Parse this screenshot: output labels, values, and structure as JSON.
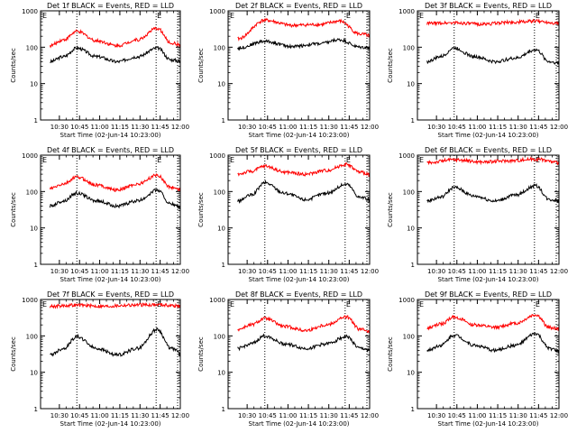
{
  "figure": {
    "x_tick_labels": [
      "10:30",
      "10:45",
      "11:00",
      "11:15",
      "11:30",
      "11:45",
      "12:00"
    ],
    "y_tick_labels": [
      "1",
      "10",
      "100",
      "1000"
    ],
    "ylabel": "Counts/sec",
    "xlabel": "Start Time (02-Jun-14 10:23:00)",
    "corner_marker_left": "E",
    "corner_marker_right": "E",
    "colors": {
      "events": "#000000",
      "lld": "#ff0000"
    }
  },
  "chart_data": [
    {
      "title": "Det 1f BLACK = Events, RED = LLD",
      "type": "line",
      "x_unit": "minutes since 10:23:00",
      "ylim": [
        1,
        1000
      ],
      "yscale": "log",
      "series": [
        {
          "name": "Events",
          "color": "#000000",
          "x": [
            0,
            10,
            20,
            35,
            50,
            65,
            80,
            90,
            100
          ],
          "values": [
            40,
            55,
            95,
            55,
            40,
            55,
            95,
            45,
            40
          ]
        },
        {
          "name": "LLD",
          "color": "#ff0000",
          "x": [
            0,
            10,
            20,
            35,
            50,
            65,
            80,
            90,
            100
          ],
          "values": [
            110,
            160,
            270,
            150,
            110,
            160,
            330,
            130,
            110
          ]
        }
      ]
    },
    {
      "title": "Det 2f BLACK = Events, RED = LLD",
      "type": "line",
      "x_unit": "minutes since 10:23:00",
      "ylim": [
        1,
        1000
      ],
      "yscale": "log",
      "series": [
        {
          "name": "Events",
          "color": "#000000",
          "x": [
            0,
            20,
            40,
            60,
            75,
            90,
            100
          ],
          "values": [
            95,
            145,
            105,
            125,
            160,
            100,
            95
          ]
        },
        {
          "name": "LLD",
          "color": "#ff0000",
          "x": [
            0,
            20,
            40,
            60,
            75,
            90,
            100
          ],
          "values": [
            170,
            550,
            400,
            420,
            520,
            230,
            200
          ]
        }
      ]
    },
    {
      "title": "Det 3f BLACK = Events, RED = LLD",
      "type": "line",
      "x_unit": "minutes since 10:23:00",
      "ylim": [
        1,
        1000
      ],
      "yscale": "log",
      "series": [
        {
          "name": "Events",
          "color": "#000000",
          "x": [
            0,
            10,
            20,
            35,
            50,
            65,
            80,
            90,
            100
          ],
          "values": [
            40,
            55,
            95,
            55,
            40,
            50,
            85,
            40,
            35
          ]
        },
        {
          "name": "LLD",
          "color": "#ff0000",
          "x": [
            0,
            20,
            40,
            60,
            80,
            100
          ],
          "values": [
            450,
            470,
            430,
            480,
            520,
            450
          ]
        }
      ]
    },
    {
      "title": "Det 4f BLACK = Events, RED = LLD",
      "type": "line",
      "x_unit": "minutes since 10:23:00",
      "ylim": [
        1,
        1000
      ],
      "yscale": "log",
      "series": [
        {
          "name": "Events",
          "color": "#000000",
          "x": [
            0,
            10,
            20,
            35,
            50,
            65,
            80,
            90,
            100
          ],
          "values": [
            40,
            55,
            90,
            55,
            40,
            55,
            110,
            45,
            35
          ]
        },
        {
          "name": "LLD",
          "color": "#ff0000",
          "x": [
            0,
            10,
            20,
            35,
            50,
            65,
            80,
            90,
            100
          ],
          "values": [
            120,
            160,
            250,
            150,
            110,
            160,
            280,
            130,
            110
          ]
        }
      ]
    },
    {
      "title": "Det 5f BLACK = Events, RED = LLD",
      "type": "line",
      "x_unit": "minutes since 10:23:00",
      "ylim": [
        1,
        1000
      ],
      "yscale": "log",
      "series": [
        {
          "name": "Events",
          "color": "#000000",
          "x": [
            0,
            10,
            20,
            35,
            50,
            65,
            80,
            90,
            100
          ],
          "values": [
            55,
            80,
            175,
            90,
            60,
            90,
            160,
            70,
            55
          ]
        },
        {
          "name": "LLD",
          "color": "#ff0000",
          "x": [
            0,
            10,
            20,
            35,
            50,
            65,
            80,
            90,
            100
          ],
          "values": [
            300,
            360,
            500,
            340,
            300,
            380,
            560,
            340,
            280
          ]
        }
      ]
    },
    {
      "title": "Det 6f BLACK = Events, RED = LLD",
      "type": "line",
      "x_unit": "minutes since 10:23:00",
      "ylim": [
        1,
        1000
      ],
      "yscale": "log",
      "series": [
        {
          "name": "Events",
          "color": "#000000",
          "x": [
            0,
            10,
            20,
            35,
            50,
            65,
            80,
            90,
            100
          ],
          "values": [
            55,
            70,
            130,
            75,
            55,
            80,
            145,
            60,
            55
          ]
        },
        {
          "name": "LLD",
          "color": "#ff0000",
          "x": [
            0,
            20,
            40,
            60,
            80,
            100
          ],
          "values": [
            620,
            750,
            650,
            700,
            780,
            600
          ]
        }
      ]
    },
    {
      "title": "Det 7f BLACK = Events, RED = LLD",
      "type": "line",
      "x_unit": "minutes since 10:23:00",
      "ylim": [
        1,
        1000
      ],
      "yscale": "log",
      "series": [
        {
          "name": "Events",
          "color": "#000000",
          "x": [
            0,
            10,
            20,
            35,
            50,
            65,
            80,
            90,
            100
          ],
          "values": [
            30,
            45,
            95,
            45,
            30,
            45,
            150,
            45,
            30
          ]
        },
        {
          "name": "LLD",
          "color": "#ff0000",
          "x": [
            0,
            20,
            40,
            60,
            80,
            100
          ],
          "values": [
            650,
            700,
            650,
            700,
            720,
            650
          ]
        }
      ]
    },
    {
      "title": "Det 8f BLACK = Events, RED = LLD",
      "type": "line",
      "x_unit": "minutes since 10:23:00",
      "ylim": [
        1,
        1000
      ],
      "yscale": "log",
      "series": [
        {
          "name": "Events",
          "color": "#000000",
          "x": [
            0,
            10,
            20,
            35,
            50,
            65,
            80,
            90,
            100
          ],
          "values": [
            45,
            60,
            100,
            60,
            45,
            60,
            95,
            45,
            40
          ]
        },
        {
          "name": "LLD",
          "color": "#ff0000",
          "x": [
            0,
            10,
            20,
            35,
            50,
            65,
            80,
            90,
            100
          ],
          "values": [
            150,
            200,
            300,
            180,
            140,
            200,
            330,
            150,
            130
          ]
        }
      ]
    },
    {
      "title": "Det 9f BLACK = Events, RED = LLD",
      "type": "line",
      "x_unit": "minutes since 10:23:00",
      "ylim": [
        1,
        1000
      ],
      "yscale": "log",
      "series": [
        {
          "name": "Events",
          "color": "#000000",
          "x": [
            0,
            10,
            20,
            35,
            50,
            65,
            80,
            90,
            100
          ],
          "values": [
            40,
            55,
            105,
            55,
            40,
            55,
            115,
            45,
            35
          ]
        },
        {
          "name": "LLD",
          "color": "#ff0000",
          "x": [
            0,
            10,
            20,
            35,
            50,
            65,
            80,
            90,
            100
          ],
          "values": [
            160,
            210,
            330,
            200,
            170,
            220,
            380,
            170,
            150
          ]
        }
      ]
    }
  ]
}
